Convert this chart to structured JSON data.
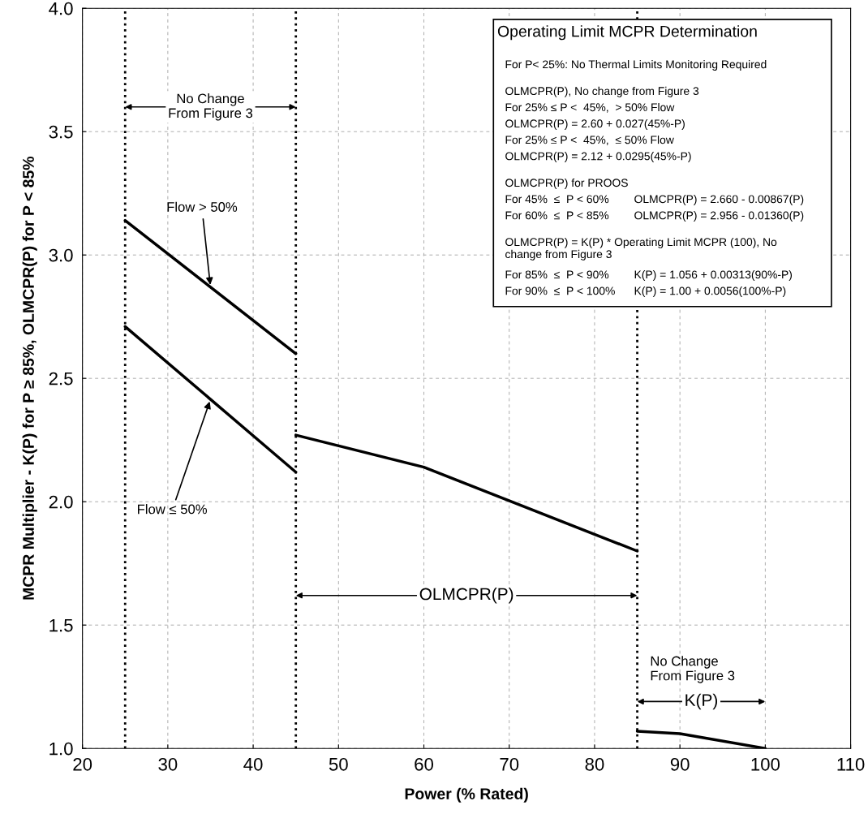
{
  "chart_data": {
    "type": "line",
    "xlabel": "Power (% Rated)",
    "ylabel": "MCPR Multiplier - K(P) for P ≥ 85%, OLMCPR(P) for P < 85%",
    "series": [
      {
        "name": "Flow > 50%",
        "color": "#000000",
        "x": [
          25,
          45
        ],
        "values": [
          3.14,
          2.6
        ]
      },
      {
        "name": "Flow ≤ 50%",
        "color": "#000000",
        "x": [
          25,
          45
        ],
        "values": [
          2.71,
          2.12
        ]
      },
      {
        "color": "#000000",
        "x": [
          45,
          60,
          85
        ],
        "values": [
          2.27,
          2.14,
          1.8
        ]
      },
      {
        "color": "#000000",
        "x": [
          85,
          90,
          100
        ],
        "values": [
          1.07,
          1.06,
          1.0
        ]
      }
    ],
    "xlim": [
      20,
      110
    ],
    "xticks": [
      20,
      30,
      40,
      50,
      60,
      70,
      80,
      90,
      100,
      110
    ],
    "ylim": [
      1.0,
      4.0
    ],
    "yticks": [
      {
        "value": 1.0,
        "label": "1.0"
      },
      {
        "value": 1.5,
        "label": "1.5"
      },
      {
        "value": 2.0,
        "label": "2.0"
      },
      {
        "value": 2.5,
        "label": "2.5"
      },
      {
        "value": 3.0,
        "label": "3.0"
      },
      {
        "value": 3.5,
        "label": "3.5"
      },
      {
        "value": 4.0,
        "label": "4.0"
      }
    ],
    "ref_lines": [
      {
        "axis": "x",
        "value": 25,
        "line_style": "dotted",
        "color": "#000000"
      },
      {
        "axis": "x",
        "value": 45,
        "line_style": "dotted",
        "color": "#000000"
      },
      {
        "axis": "x",
        "value": 85,
        "line_style": "dotted",
        "color": "#000000"
      }
    ],
    "grid": true,
    "line_style": "solid",
    "marker": "none",
    "annotations": [
      {
        "text": "No Change\nFrom Figure 3",
        "x": 25,
        "y": 3.6
      },
      {
        "text": "OLMCPR(P)",
        "x": 45,
        "y": 1.62
      },
      {
        "text": "K(P)",
        "x": 85,
        "y": 1.19
      },
      "No Change\nFrom Figure 3",
      "Operating Limit MCPR Determination",
      "For P< 25%: No Thermal Limits Monitoring Required",
      "OLMCPR(P), No change from Figure 3",
      "For 25% ≤ P <  45%,  > 50% Flow",
      "OLMCPR(P) = 2.60 + 0.027(45%-P)",
      "For 25% ≤ P <  45%,  ≤ 50% Flow",
      "OLMCPR(P) = 2.12 + 0.0295(45%-P)",
      "OLMCPR(P) for PROOS",
      "For 45%  ≤  P < 60%        OLMCPR(P) = 2.660 - 0.00867(P)",
      "For 60%  ≤  P < 85%        OLMCPR(P) = 2.956 - 0.01360(P)",
      "OLMCPR(P) = K(P) * Operating Limit MCPR (100), No\nchange from Figure 3",
      "For 85%  ≤  P < 90%        K(P) = 1.056 + 0.00313(90%-P)",
      "For 90%  ≤  P < 100%      K(P) = 1.00 + 0.0056(100%-P)"
    ]
  }
}
